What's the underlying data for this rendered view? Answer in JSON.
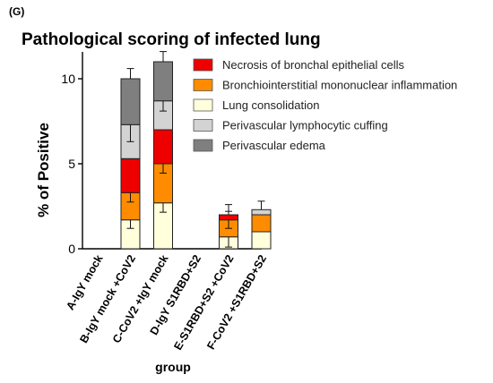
{
  "panel_label": "(G)",
  "chart_data": {
    "type": "bar",
    "stacked": true,
    "title": "Pathological scoring of infected lung",
    "xlabel": "group",
    "ylabel": "% of  Positive",
    "ylim": [
      0,
      12
    ],
    "yticks": [
      0,
      5,
      10
    ],
    "legend_position": "top-right",
    "categories": [
      "A-IgY mock",
      "B-IgY mock +CoV2",
      "C-CoV2 +IgY mock",
      "D-IgY S1RBD+S2",
      "E-S1RBD+S2 +CoV2",
      "F-CoV2 +S1RBD+S2"
    ],
    "series": [
      {
        "name": "Lung consolidation",
        "color": "#ffffdc",
        "values": [
          0,
          1.7,
          2.7,
          0,
          0.7,
          1.0
        ],
        "errors": [
          0,
          0.5,
          0.55,
          0,
          0.6,
          0
        ]
      },
      {
        "name": "Bronchiointerstitial mononuclear inflammation",
        "color": "#ff8c00",
        "values": [
          0,
          1.6,
          2.3,
          0,
          1.0,
          1.0
        ],
        "errors": [
          0,
          0.55,
          0.55,
          0,
          0.5,
          0
        ]
      },
      {
        "name": "Necrosis of bronchal epithelial cells",
        "color": "#ee0000",
        "values": [
          0,
          2.0,
          2.0,
          0,
          0.3,
          0
        ],
        "errors": [
          0,
          0,
          0,
          0,
          0,
          0
        ]
      },
      {
        "name": "Perivascular lymphocytic cuffing",
        "color": "#d3d3d3",
        "values": [
          0,
          2.0,
          1.7,
          0,
          0,
          0.3
        ],
        "errors": [
          0,
          1.0,
          0.6,
          0,
          0,
          0
        ]
      },
      {
        "name": "Perivascular edema",
        "color": "#7f7f7f",
        "values": [
          0,
          2.7,
          2.3,
          0,
          0,
          0
        ],
        "errors": [
          0,
          0.6,
          0.6,
          0,
          0,
          0
        ]
      }
    ],
    "top_errors": [
      0,
      0.6,
      0.6,
      0,
      0.6,
      0.5
    ],
    "legend_order": [
      "Necrosis of bronchal epithelial cells",
      "Bronchiointerstitial mononuclear inflammation",
      "Lung consolidation",
      "Perivascular lymphocytic cuffing",
      "Perivascular edema"
    ]
  }
}
